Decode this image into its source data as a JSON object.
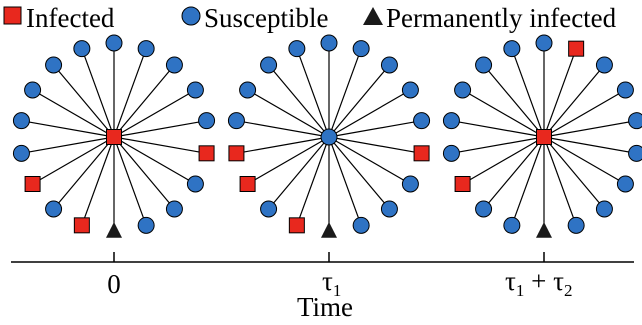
{
  "legend": {
    "items": [
      {
        "shape": "square",
        "label": "Infected"
      },
      {
        "shape": "circle",
        "label": "Susceptible"
      },
      {
        "shape": "triangle",
        "label": "Permanently infected"
      }
    ]
  },
  "colors": {
    "infected": "#e8281e",
    "susceptible": "#2f73c4",
    "permanent": "#1a1a1a",
    "edge": "#000000"
  },
  "axis": {
    "title": "Time",
    "ticks": [
      {
        "base": "0",
        "sub": ""
      },
      {
        "base": "τ",
        "sub": "1"
      },
      {
        "base": "τ",
        "sub": "1",
        "plus": " + ",
        "base2": "τ",
        "sub2": "2"
      }
    ]
  },
  "snapshots": [
    {
      "center": "infected",
      "leaves": [
        "S",
        "S",
        "S",
        "S",
        "S",
        "I",
        "S",
        "S",
        "S",
        "P",
        "I",
        "S",
        "I",
        "S",
        "S",
        "S",
        "S",
        "S"
      ]
    },
    {
      "center": "susceptible",
      "leaves": [
        "S",
        "S",
        "S",
        "S",
        "S",
        "I",
        "S",
        "S",
        "S",
        "P",
        "I",
        "S",
        "I",
        "I",
        "S",
        "S",
        "S",
        "S"
      ]
    },
    {
      "center": "infected",
      "leaves": [
        "S",
        "I",
        "S",
        "S",
        "S",
        "S",
        "S",
        "S",
        "S",
        "P",
        "S",
        "S",
        "I",
        "S",
        "S",
        "S",
        "S",
        "S"
      ]
    }
  ]
}
